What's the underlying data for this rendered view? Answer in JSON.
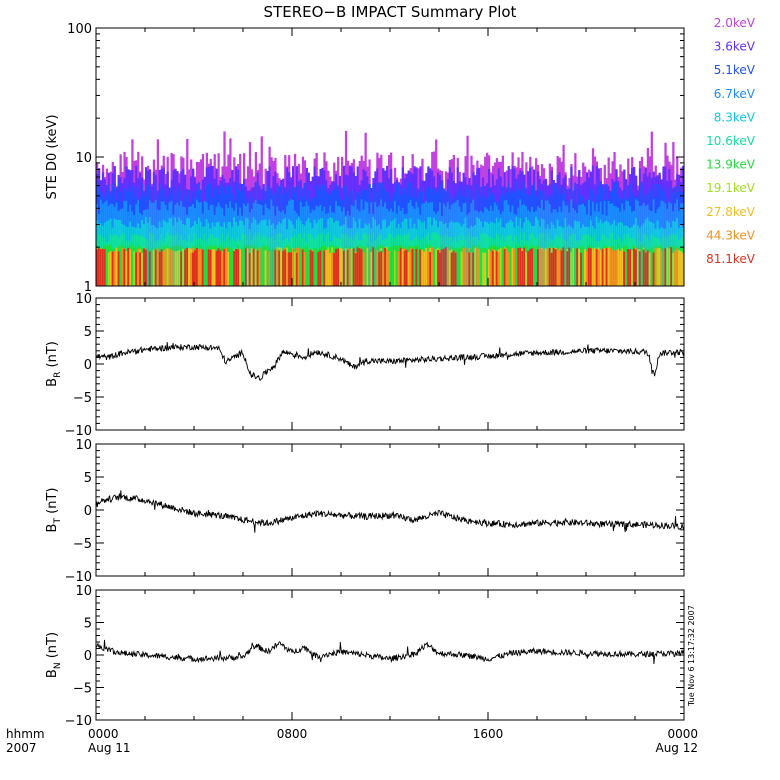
{
  "title": "STEREO−B IMPACT Summary Plot",
  "timestamp": "Tue Nov  6 13:17:32 2007",
  "chart_data": [
    {
      "type": "bar",
      "ylabel": "STE D0 (keV)",
      "yscale": "log",
      "ylim": [
        1,
        100
      ],
      "yticks": [
        "1",
        "10",
        "100"
      ],
      "legend_position": "right",
      "channels": [
        {
          "label": "2.0keV",
          "color": "#c040e0",
          "typical": 8.2,
          "spread": 2.8
        },
        {
          "label": "3.6keV",
          "color": "#6030ff",
          "typical": 7.0,
          "spread": 1.6
        },
        {
          "label": "5.1keV",
          "color": "#2050ff",
          "typical": 5.4,
          "spread": 1.0
        },
        {
          "label": "6.7keV",
          "color": "#1a8cff",
          "typical": 4.1,
          "spread": 0.6
        },
        {
          "label": "8.3keV",
          "color": "#10c8e0",
          "typical": 3.1,
          "spread": 0.35
        },
        {
          "label": "10.6keV",
          "color": "#10e0a0",
          "typical": 2.4,
          "spread": 0.2
        },
        {
          "label": "13.9keV",
          "color": "#20e040",
          "typical": 2.0,
          "spread": 0.1
        },
        {
          "label": "19.1keV",
          "color": "#a0e020",
          "typical": 1.9,
          "spread": 0.1
        },
        {
          "label": "27.8keV",
          "color": "#f0c020",
          "typical": 1.9,
          "spread": 0.1
        },
        {
          "label": "44.3keV",
          "color": "#f09020",
          "typical": 1.9,
          "spread": 0.1
        },
        {
          "label": "81.1keV",
          "color": "#e03020",
          "typical": 1.9,
          "spread": 0.1
        }
      ]
    },
    {
      "type": "line",
      "ylabel": "B",
      "ylabel_sub": "R",
      "ylabel_unit": "(nT)",
      "ylim": [
        -10,
        10
      ],
      "yticks": [
        "10",
        "5",
        "0",
        "−5",
        "−10"
      ],
      "x_hours": [
        0,
        0.5,
        1,
        2,
        3,
        4,
        5,
        5.3,
        6,
        6.3,
        6.7,
        7,
        7.3,
        7.6,
        8,
        8.5,
        9,
        10,
        10.5,
        11,
        12,
        13,
        14,
        15,
        16,
        17,
        18,
        19,
        20,
        21,
        22,
        22.5,
        22.8,
        23,
        23.5,
        24
      ],
      "values": [
        1.2,
        1.0,
        1.6,
        2.2,
        2.5,
        2.6,
        2.4,
        0.3,
        1.8,
        -1.6,
        -2.2,
        -1.0,
        -0.2,
        1.8,
        1.6,
        1.0,
        1.9,
        0.8,
        -0.5,
        0.5,
        0.4,
        0.6,
        0.8,
        1.0,
        1.2,
        1.5,
        1.7,
        1.8,
        2.0,
        2.0,
        1.9,
        1.8,
        -1.5,
        1.6,
        1.8,
        1.8
      ],
      "noise": 0.45
    },
    {
      "type": "line",
      "ylabel": "B",
      "ylabel_sub": "T",
      "ylabel_unit": "(nT)",
      "ylim": [
        -10,
        10
      ],
      "yticks": [
        "10",
        "5",
        "0",
        "−5",
        "−10"
      ],
      "x_hours": [
        0,
        1,
        2,
        3,
        4,
        5,
        6,
        7,
        8,
        9,
        10,
        11,
        12,
        13,
        14,
        15,
        16,
        17,
        18,
        19,
        20,
        21,
        22,
        23,
        24
      ],
      "values": [
        1.2,
        2.0,
        1.5,
        0.5,
        -0.5,
        -0.8,
        -1.5,
        -2.0,
        -1.2,
        -0.5,
        -0.8,
        -1.0,
        -0.8,
        -1.5,
        -0.5,
        -1.5,
        -2.0,
        -2.2,
        -2.0,
        -1.8,
        -2.0,
        -2.2,
        -2.2,
        -2.3,
        -2.5
      ],
      "noise": 0.5
    },
    {
      "type": "line",
      "ylabel": "B",
      "ylabel_sub": "N",
      "ylabel_unit": "(nT)",
      "ylim": [
        -10,
        10
      ],
      "yticks": [
        "10",
        "5",
        "0",
        "−5",
        "−10"
      ],
      "x_hours": [
        0,
        1,
        2,
        3,
        4,
        5,
        6,
        6.5,
        7,
        7.5,
        8,
        8.5,
        9,
        10,
        11,
        12,
        13,
        13.5,
        14,
        15,
        16,
        17,
        18,
        19,
        20,
        21,
        22,
        23,
        24
      ],
      "values": [
        1.5,
        0.3,
        0.0,
        -0.3,
        -0.6,
        -0.5,
        -0.3,
        1.5,
        0.5,
        1.8,
        0.4,
        1.2,
        -0.2,
        0.5,
        0.0,
        -0.6,
        0.2,
        1.6,
        0.3,
        0.0,
        -0.6,
        0.3,
        0.6,
        0.4,
        0.3,
        0.2,
        0.1,
        0.2,
        0.3
      ],
      "noise": 0.45
    }
  ],
  "x_axis": {
    "ticks": [
      {
        "time": "0000",
        "date": "Aug 11"
      },
      {
        "time": "0800",
        "date": ""
      },
      {
        "time": "1600",
        "date": ""
      },
      {
        "time": "0000",
        "date": "Aug 12"
      }
    ],
    "label_time": "hhmm",
    "label_year": "2007"
  }
}
